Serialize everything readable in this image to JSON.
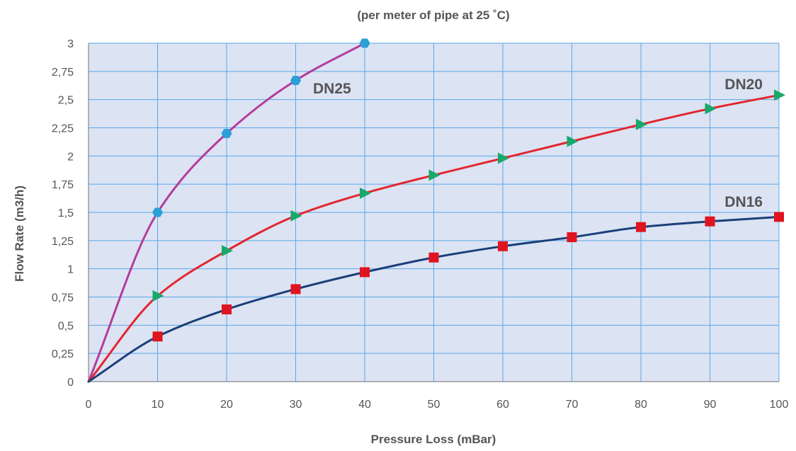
{
  "chart_data": {
    "type": "line",
    "title": "",
    "subtitle": "(per meter of pipe at 25 ˚C)",
    "xlabel": "Pressure Loss (mBar)",
    "ylabel": "Flow Rate (m3/h)",
    "xlim": [
      0,
      100
    ],
    "ylim": [
      0,
      3
    ],
    "x_ticks": [
      "0",
      "10",
      "20",
      "30",
      "40",
      "50",
      "60",
      "70",
      "80",
      "90",
      "100"
    ],
    "y_ticks": [
      "0",
      "0,25",
      "0,5",
      "0,75",
      "1",
      "1,25",
      "1,5",
      "1,75",
      "2",
      "2,25",
      "2,5",
      "2,75",
      "3"
    ],
    "grid": true,
    "series": [
      {
        "name": "DN25",
        "color": "#b23c9c",
        "marker": "hexagon",
        "marker_color": "#2a9fd8",
        "x": [
          0,
          10,
          20,
          30,
          40
        ],
        "y": [
          0,
          1.5,
          2.2,
          2.67,
          3.0
        ]
      },
      {
        "name": "DN20",
        "color": "#e3262f",
        "marker": "triangle-right",
        "marker_color": "#1aa86a",
        "x": [
          0,
          10,
          20,
          30,
          40,
          50,
          60,
          70,
          80,
          90,
          100
        ],
        "y": [
          0,
          0.76,
          1.16,
          1.47,
          1.67,
          1.83,
          1.98,
          2.13,
          2.28,
          2.42,
          2.54
        ]
      },
      {
        "name": "DN16",
        "color": "#1a3f7a",
        "marker": "square",
        "marker_color": "#e0141e",
        "x": [
          0,
          10,
          20,
          30,
          40,
          50,
          60,
          70,
          80,
          90,
          100
        ],
        "y": [
          0,
          0.4,
          0.64,
          0.82,
          0.97,
          1.1,
          1.2,
          1.28,
          1.37,
          1.42,
          1.46
        ]
      }
    ],
    "colors": {
      "plot_background": "#dce3f3",
      "grid": "#5aa9e6",
      "axis": "#888888"
    }
  }
}
